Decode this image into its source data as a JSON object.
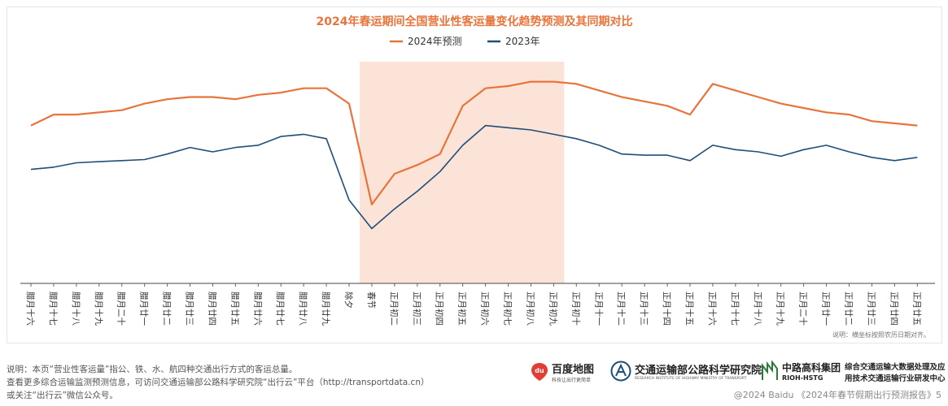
{
  "chart_data": {
    "type": "line",
    "title": "2024年春运期间全国营业性客运量变化趋势预测及其同期对比",
    "legend_position": "top-center",
    "grid": false,
    "y_axis_visible": false,
    "ylim": [
      0,
      100
    ],
    "highlight_region": {
      "from": "春节",
      "to": "正月初九",
      "color": "#fbe3d7"
    },
    "categories": [
      "腊月十六",
      "腊月十七",
      "腊月十八",
      "腊月十九",
      "腊月二十",
      "腊月廿一",
      "腊月廿二",
      "腊月廿三",
      "腊月廿四",
      "腊月廿五",
      "腊月廿六",
      "腊月廿七",
      "腊月廿八",
      "腊月廿九",
      "除夕",
      "春节",
      "正月初二",
      "正月初三",
      "正月初四",
      "正月初五",
      "正月初六",
      "正月初七",
      "正月初八",
      "正月初九",
      "正月初十",
      "正月十一",
      "正月十二",
      "正月十三",
      "正月十四",
      "正月十五",
      "正月十六",
      "正月十七",
      "正月十八",
      "正月十九",
      "正月二十",
      "正月廿一",
      "正月廿二",
      "正月廿三",
      "正月廿四",
      "正月廿五"
    ],
    "series": [
      {
        "name": "2024年预测",
        "color": "#e8743b",
        "values": [
          72,
          77,
          77,
          78,
          79,
          82,
          84,
          85,
          85,
          84,
          86,
          87,
          89,
          89,
          82,
          36,
          50,
          54,
          59,
          81,
          89,
          90,
          92,
          92,
          91,
          88,
          85,
          83,
          81,
          77,
          91,
          88,
          85,
          82,
          80,
          78,
          77,
          74,
          73,
          72
        ]
      },
      {
        "name": "2023年",
        "color": "#1f4e79",
        "values": [
          52,
          53,
          55,
          55.5,
          56,
          56.5,
          59,
          62,
          60,
          62,
          63,
          67,
          68,
          66,
          38,
          25,
          34,
          42,
          51,
          63,
          72,
          71,
          70,
          68,
          66,
          63,
          59,
          58.5,
          58.5,
          56,
          63,
          61,
          60,
          58,
          61,
          63,
          60,
          57.5,
          56,
          57.5
        ]
      }
    ],
    "footnote": "说明：横坐标按照农历日期对齐。"
  },
  "notes": [
    "说明：本页“营业性客运量”指公、铁、水、航四种交通出行方式的客运总量。",
    "查看更多综合运输监测预测信息，可访问交通运输部公路科学研究院“出行云”平台（http://transportdata.cn）",
    "或关注“出行云”微信公众号。"
  ],
  "logos": {
    "baidu": {
      "name": "百度地图",
      "tagline": "科技让出行更简单",
      "mark": "du"
    },
    "rioh": {
      "name": "交通运输部公路科学研究院",
      "english": "RESEARCH INSTITUTE OF HIGHWAY MINISTRY OF TRANSPORT"
    },
    "hstg": {
      "name": "中路高科集团",
      "english": "RIOH-HSTG"
    },
    "center": {
      "line1": "综合交通运输大数据处理及应",
      "line2": "用技术交通运输行业研发中心"
    }
  },
  "footer": "@2024 Baidu 《2024年春节假期出行预测报告》5"
}
